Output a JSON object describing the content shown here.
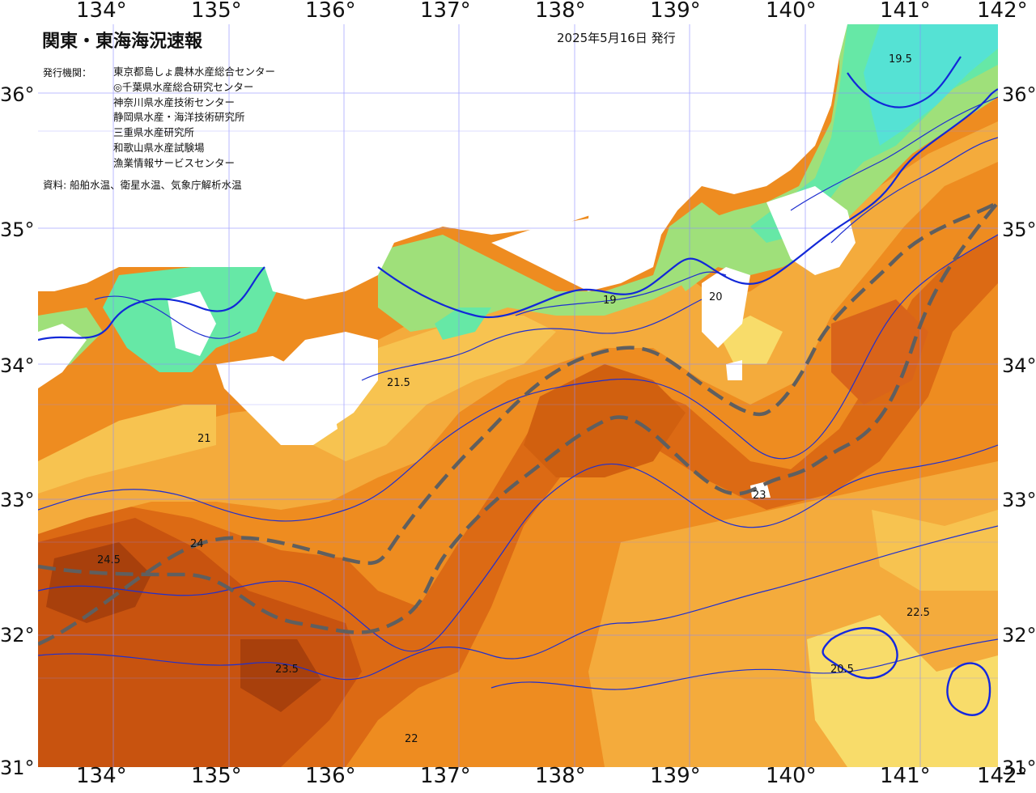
{
  "map": {
    "title": "関東・東海海況速報",
    "date": "2025年5月16日 発行",
    "issuer_label": "発行機関：",
    "issuers": [
      "東京都島しょ農林水産総合センター",
      "◎千葉県水産総合研究センター",
      "神奈川県水産技術センター",
      "静岡県水産・海洋技術研究所",
      "三重県水産研究所",
      "和歌山県水産試験場",
      "漁業情報サービスセンター"
    ],
    "source": "資料: 船舶水温、衛星水温、気象庁解析水温",
    "lon_labels": [
      "134°",
      "135°",
      "136°",
      "137°",
      "138°",
      "139°",
      "140°",
      "141°",
      "142°"
    ],
    "lat_labels": [
      "36°",
      "35°",
      "34°",
      "33°",
      "32°",
      "31°"
    ],
    "isotherm_labels": [
      "24.5",
      "24",
      "23.5",
      "23",
      "22.5",
      "22",
      "21.5",
      "21",
      "20.5",
      "20",
      "19.5",
      "19"
    ],
    "colors": {
      "temp_24_5": "#a8400c",
      "temp_24": "#c8530f",
      "temp_23_5": "#dc6a14",
      "temp_23": "#e97d1c",
      "temp_22_5": "#ee8c20",
      "temp_22": "#f29a2a",
      "temp_21_5": "#f4ab3c",
      "temp_21": "#f7c350",
      "temp_20_5": "#f8dc6a",
      "temp_20": "#f2ea6a",
      "temp_19_5": "#9fe07a",
      "temp_19": "#66e8a6",
      "temp_18": "#55e2d4",
      "land": "#ffffff",
      "isotherm": "#1f2fd0",
      "kuroshio_axis": "#5f5f5f",
      "grid": "#8a8aff"
    }
  }
}
